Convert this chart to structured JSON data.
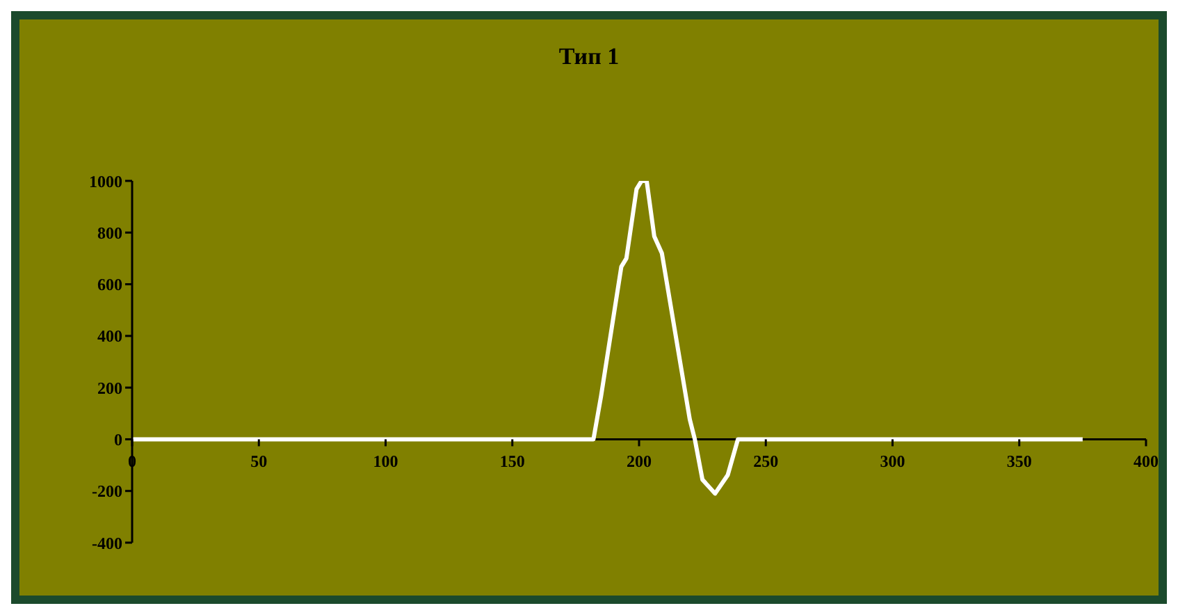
{
  "chart_data": {
    "type": "line",
    "title": "Тип 1",
    "x": [
      0,
      182,
      185,
      193,
      195,
      199,
      201,
      203,
      206,
      209,
      220,
      222,
      225,
      230,
      235,
      239,
      375
    ],
    "series": [
      {
        "color": "#ffffff",
        "values": [
          0,
          0,
          167,
          668,
          700,
          968,
          1000,
          1000,
          785,
          720,
          77,
          0,
          -156,
          -210,
          -138,
          0,
          0
        ]
      }
    ],
    "xlim": [
      0,
      400
    ],
    "xticks": [
      0,
      50,
      100,
      150,
      200,
      250,
      300,
      350,
      400
    ],
    "ylim": [
      -400,
      1000
    ],
    "yticks": [
      -400,
      -200,
      0,
      200,
      400,
      600,
      800,
      1000
    ],
    "marker": "none",
    "line_style": "solid"
  }
}
